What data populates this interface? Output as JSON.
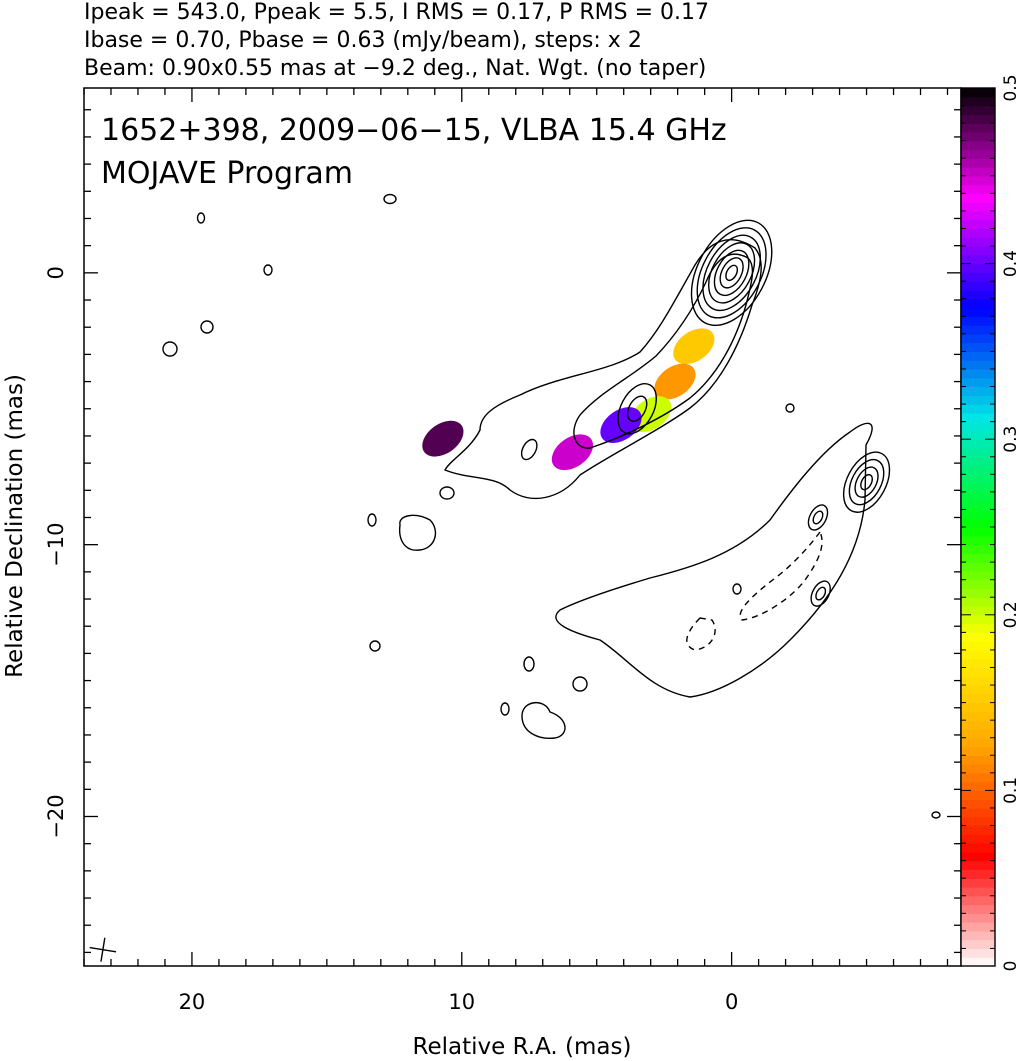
{
  "chart_data": {
    "type": "heatmap",
    "header_lines": [
      "Ipeak = 543.0, Ppeak = 5.5, I RMS = 0.17, P RMS = 0.17",
      "Ibase = 0.70, Pbase = 0.63 (mJy/beam), steps: x 2",
      "Beam: 0.90x0.55 mas at −9.2 deg., Nat. Wgt. (no taper)"
    ],
    "annotations": [
      "1652+398, 2009−06−15, VLBA 15.4 GHz",
      "MOJAVE Program"
    ],
    "xlabel": "Relative R.A. (mas)",
    "ylabel": "Relative Declination (mas)",
    "xlim": [
      24,
      -8.5
    ],
    "ylim": [
      -25.5,
      6.8
    ],
    "x_ticks": [
      20,
      10,
      0
    ],
    "x_tick_labels": [
      "20",
      "10",
      "0"
    ],
    "y_ticks": [
      0,
      -10,
      -20
    ],
    "y_tick_labels": [
      "0",
      "−10",
      "−20"
    ],
    "colorbar": {
      "range": [
        0,
        0.5
      ],
      "ticks": [
        0,
        0.1,
        0.2,
        0.3,
        0.4,
        0.5
      ],
      "tick_labels": [
        "0",
        "0.1",
        "0.2",
        "0.3",
        "0.4",
        "0.5"
      ],
      "stops": [
        "#ffffff",
        "#ff0000",
        "#ffa500",
        "#ffff00",
        "#00ff00",
        "#00e5e5",
        "#0000ff",
        "#ff00ff",
        "#000000"
      ]
    },
    "beam": {
      "major_mas": 0.9,
      "minor_mas": 0.55,
      "pa_deg": -9.2
    },
    "components": [
      {
        "x": 0.0,
        "y": 0.0,
        "levels": [
          0.3,
          0.6,
          0.9,
          1.2,
          1.5,
          1.8,
          2.1
        ]
      },
      {
        "x": 3.5,
        "y": -5.0,
        "levels": [
          0.5,
          1.0
        ]
      },
      {
        "x": 7.5,
        "y": -6.5,
        "levels": [
          0.4
        ]
      },
      {
        "x": -5.0,
        "y": -7.7,
        "levels": [
          0.3,
          0.6,
          0.9,
          1.2
        ]
      },
      {
        "x": -3.2,
        "y": -9.0,
        "levels": [
          0.25,
          0.5
        ]
      },
      {
        "x": -3.3,
        "y": -11.8,
        "levels": [
          0.25,
          0.5
        ]
      }
    ],
    "polarization_patches": [
      {
        "x": 1.4,
        "y": -2.7,
        "value": 0.15
      },
      {
        "x": 2.1,
        "y": -4.0,
        "value": 0.12
      },
      {
        "x": 3.0,
        "y": -5.2,
        "value": 0.2
      },
      {
        "x": 4.1,
        "y": -5.6,
        "value": 0.4
      },
      {
        "x": 5.9,
        "y": -6.6,
        "value": 0.45
      },
      {
        "x": 10.7,
        "y": -6.1,
        "value": 0.48
      }
    ]
  }
}
